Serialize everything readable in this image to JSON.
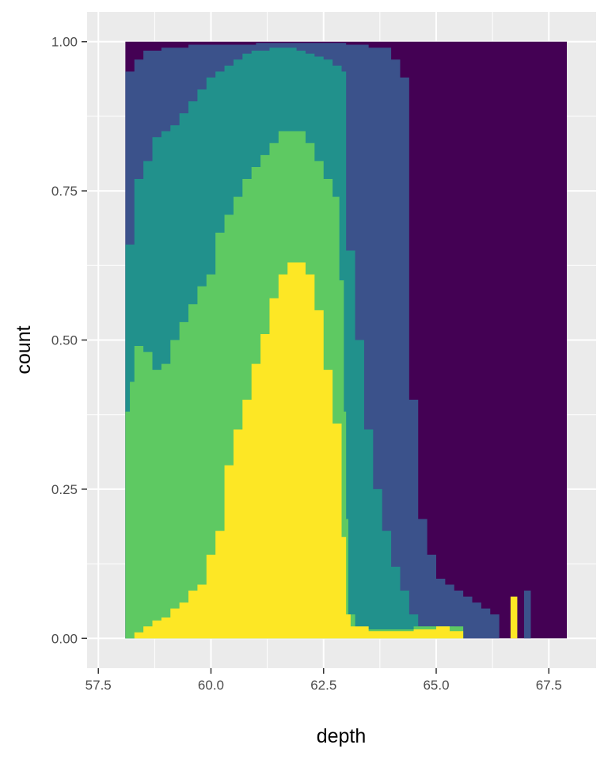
{
  "chart_data": {
    "type": "area",
    "position": "fill",
    "xlabel": "depth",
    "ylabel": "count",
    "xlim": [
      57.25,
      68.55
    ],
    "ylim": [
      -0.05,
      1.05
    ],
    "x_ticks": [
      {
        "value": 57.5,
        "label": "57.5"
      },
      {
        "value": 60.0,
        "label": "60.0"
      },
      {
        "value": 62.5,
        "label": "62.5"
      },
      {
        "value": 65.0,
        "label": "65.0"
      },
      {
        "value": 67.5,
        "label": "67.5"
      }
    ],
    "y_ticks": [
      {
        "value": 0.0,
        "label": "0.00"
      },
      {
        "value": 0.25,
        "label": "0.25"
      },
      {
        "value": 0.5,
        "label": "0.50"
      },
      {
        "value": 0.75,
        "label": "0.75"
      },
      {
        "value": 1.0,
        "label": "1.00"
      }
    ],
    "grid": true,
    "legend": "none",
    "panel_background": "#ebebeb",
    "grid_color": "#ffffff",
    "stack_order_bottom_to_top": [
      "#fde725",
      "#5ec962",
      "#21918c",
      "#3b528b",
      "#440154"
    ],
    "x_range": [
      58.1,
      67.9
    ],
    "boundaries": [
      {
        "top_of": "#fde725",
        "points": [
          [
            58.1,
            0.0
          ],
          [
            58.3,
            0.01
          ],
          [
            58.5,
            0.02
          ],
          [
            58.7,
            0.03
          ],
          [
            58.9,
            0.035
          ],
          [
            59.1,
            0.05
          ],
          [
            59.3,
            0.06
          ],
          [
            59.5,
            0.08
          ],
          [
            59.7,
            0.09
          ],
          [
            59.9,
            0.14
          ],
          [
            60.1,
            0.18
          ],
          [
            60.3,
            0.29
          ],
          [
            60.5,
            0.35
          ],
          [
            60.7,
            0.4
          ],
          [
            60.9,
            0.46
          ],
          [
            61.1,
            0.51
          ],
          [
            61.3,
            0.57
          ],
          [
            61.5,
            0.61
          ],
          [
            61.7,
            0.63
          ],
          [
            61.9,
            0.63
          ],
          [
            62.1,
            0.61
          ],
          [
            62.3,
            0.55
          ],
          [
            62.5,
            0.45
          ],
          [
            62.7,
            0.36
          ],
          [
            62.9,
            0.17
          ],
          [
            63.0,
            0.04
          ],
          [
            63.1,
            0.02
          ],
          [
            63.5,
            0.012
          ],
          [
            64.0,
            0.012
          ],
          [
            64.5,
            0.015
          ],
          [
            65.0,
            0.02
          ],
          [
            65.3,
            0.012
          ],
          [
            65.6,
            0.0
          ],
          [
            66.0,
            0.0
          ],
          [
            66.6,
            0.0
          ],
          [
            66.65,
            0.07
          ],
          [
            66.75,
            0.07
          ],
          [
            66.8,
            0.0
          ],
          [
            67.9,
            0.0
          ]
        ]
      },
      {
        "top_of": "#5ec962",
        "points": [
          [
            58.1,
            0.38
          ],
          [
            58.2,
            0.43
          ],
          [
            58.3,
            0.49
          ],
          [
            58.5,
            0.48
          ],
          [
            58.7,
            0.45
          ],
          [
            58.9,
            0.46
          ],
          [
            59.1,
            0.5
          ],
          [
            59.3,
            0.53
          ],
          [
            59.5,
            0.56
          ],
          [
            59.7,
            0.59
          ],
          [
            59.9,
            0.61
          ],
          [
            60.1,
            0.68
          ],
          [
            60.3,
            0.71
          ],
          [
            60.5,
            0.74
          ],
          [
            60.7,
            0.77
          ],
          [
            60.9,
            0.79
          ],
          [
            61.1,
            0.81
          ],
          [
            61.3,
            0.83
          ],
          [
            61.5,
            0.85
          ],
          [
            61.7,
            0.85
          ],
          [
            61.9,
            0.85
          ],
          [
            62.1,
            0.83
          ],
          [
            62.3,
            0.8
          ],
          [
            62.5,
            0.77
          ],
          [
            62.7,
            0.74
          ],
          [
            62.85,
            0.6
          ],
          [
            62.95,
            0.38
          ],
          [
            63.0,
            0.2
          ],
          [
            63.05,
            0.04
          ],
          [
            63.2,
            0.015
          ],
          [
            64.0,
            0.015
          ],
          [
            64.5,
            0.02
          ],
          [
            65.0,
            0.02
          ],
          [
            65.6,
            0.0
          ],
          [
            67.9,
            0.0
          ]
        ]
      },
      {
        "top_of": "#21918c",
        "points": [
          [
            58.1,
            0.66
          ],
          [
            58.3,
            0.77
          ],
          [
            58.5,
            0.8
          ],
          [
            58.7,
            0.84
          ],
          [
            58.9,
            0.85
          ],
          [
            59.1,
            0.86
          ],
          [
            59.3,
            0.88
          ],
          [
            59.5,
            0.9
          ],
          [
            59.7,
            0.92
          ],
          [
            59.9,
            0.94
          ],
          [
            60.1,
            0.95
          ],
          [
            60.3,
            0.96
          ],
          [
            60.5,
            0.97
          ],
          [
            60.7,
            0.98
          ],
          [
            60.9,
            0.985
          ],
          [
            61.1,
            0.985
          ],
          [
            61.3,
            0.99
          ],
          [
            61.5,
            0.99
          ],
          [
            61.7,
            0.99
          ],
          [
            61.9,
            0.985
          ],
          [
            62.1,
            0.98
          ],
          [
            62.3,
            0.975
          ],
          [
            62.5,
            0.97
          ],
          [
            62.7,
            0.96
          ],
          [
            62.9,
            0.95
          ],
          [
            63.0,
            0.65
          ],
          [
            63.2,
            0.5
          ],
          [
            63.4,
            0.35
          ],
          [
            63.6,
            0.25
          ],
          [
            63.8,
            0.18
          ],
          [
            64.0,
            0.12
          ],
          [
            64.2,
            0.08
          ],
          [
            64.4,
            0.04
          ],
          [
            64.6,
            0.02
          ],
          [
            65.0,
            0.02
          ],
          [
            65.4,
            0.01
          ],
          [
            65.6,
            0.0
          ],
          [
            67.9,
            0.0
          ]
        ]
      },
      {
        "top_of": "#3b528b",
        "points": [
          [
            58.1,
            0.95
          ],
          [
            58.3,
            0.97
          ],
          [
            58.5,
            0.985
          ],
          [
            58.7,
            0.985
          ],
          [
            58.9,
            0.99
          ],
          [
            59.1,
            0.99
          ],
          [
            59.5,
            0.995
          ],
          [
            60.0,
            0.995
          ],
          [
            61.0,
            0.998
          ],
          [
            62.0,
            0.998
          ],
          [
            63.0,
            0.995
          ],
          [
            63.5,
            0.99
          ],
          [
            64.0,
            0.97
          ],
          [
            64.2,
            0.94
          ],
          [
            64.4,
            0.4
          ],
          [
            64.6,
            0.2
          ],
          [
            64.8,
            0.14
          ],
          [
            65.0,
            0.1
          ],
          [
            65.2,
            0.09
          ],
          [
            65.4,
            0.08
          ],
          [
            65.6,
            0.07
          ],
          [
            65.8,
            0.06
          ],
          [
            66.0,
            0.05
          ],
          [
            66.2,
            0.04
          ],
          [
            66.4,
            0.0
          ],
          [
            66.9,
            0.0
          ],
          [
            66.95,
            0.08
          ],
          [
            67.05,
            0.08
          ],
          [
            67.1,
            0.0
          ],
          [
            67.9,
            0.0
          ]
        ]
      }
    ]
  }
}
